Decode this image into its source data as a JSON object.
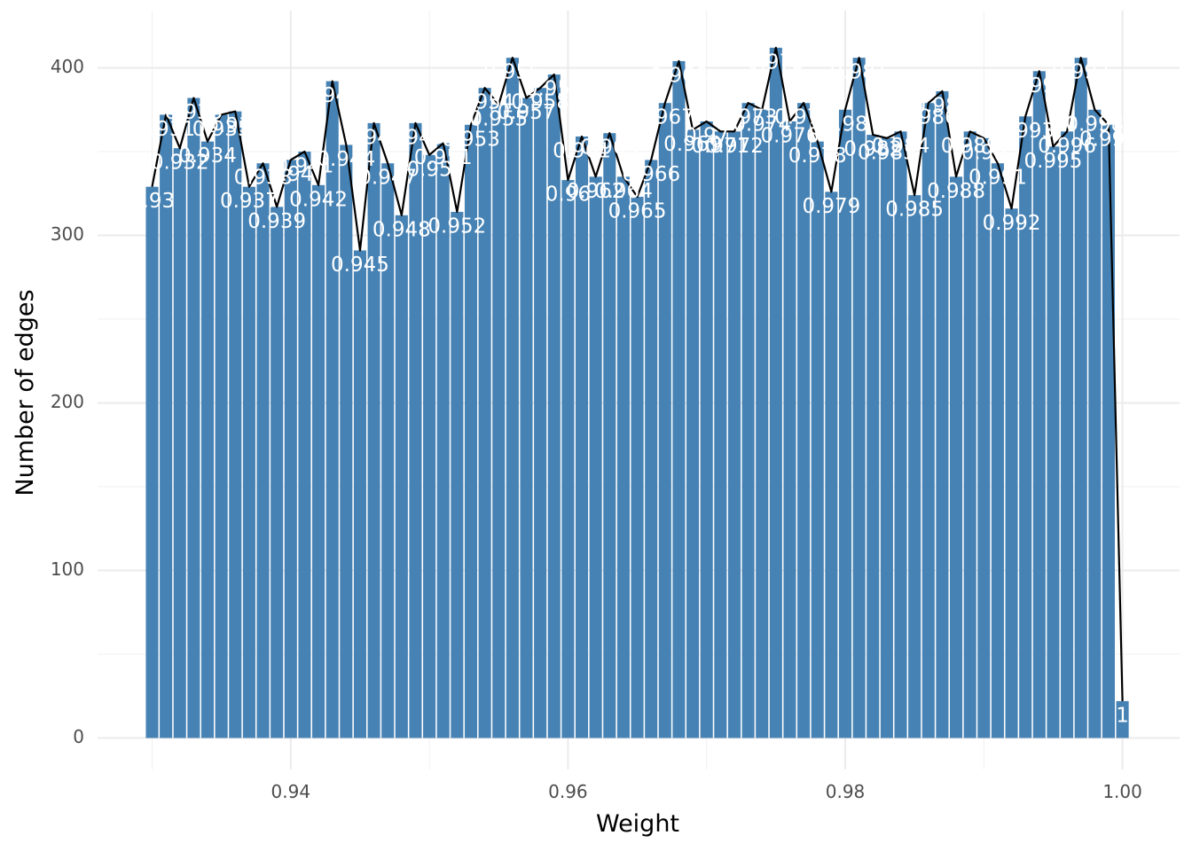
{
  "chart_data": {
    "type": "bar",
    "xlabel": "Weight",
    "ylabel": "Number of edges",
    "xlim": [
      0.9265,
      1.0035
    ],
    "ylim": [
      -20,
      430
    ],
    "x_ticks": [
      0.94,
      0.96,
      0.98,
      1.0
    ],
    "x_tick_labels": [
      "0.94",
      "0.96",
      "0.98",
      "1.00"
    ],
    "y_ticks": [
      0,
      100,
      200,
      300,
      400
    ],
    "y_tick_labels": [
      "0",
      "100",
      "200",
      "300",
      "400"
    ],
    "grid": true,
    "bar_color": "#4682B4",
    "line_color": "#000000",
    "x": [
      0.93,
      0.931,
      0.932,
      0.933,
      0.934,
      0.935,
      0.936,
      0.937,
      0.938,
      0.939,
      0.94,
      0.941,
      0.942,
      0.943,
      0.944,
      0.945,
      0.946,
      0.947,
      0.948,
      0.949,
      0.95,
      0.951,
      0.952,
      0.953,
      0.954,
      0.955,
      0.956,
      0.957,
      0.958,
      0.959,
      0.96,
      0.961,
      0.962,
      0.963,
      0.964,
      0.965,
      0.966,
      0.967,
      0.968,
      0.969,
      0.97,
      0.971,
      0.972,
      0.973,
      0.974,
      0.975,
      0.976,
      0.977,
      0.978,
      0.979,
      0.98,
      0.981,
      0.982,
      0.983,
      0.984,
      0.985,
      0.986,
      0.987,
      0.988,
      0.989,
      0.99,
      0.991,
      0.992,
      0.993,
      0.994,
      0.995,
      0.996,
      0.997,
      0.998,
      0.999,
      1.0
    ],
    "values": [
      329,
      372,
      352,
      382,
      356,
      372,
      374,
      329,
      343,
      317,
      345,
      350,
      330,
      392,
      354,
      291,
      367,
      343,
      312,
      367,
      348,
      355,
      314,
      366,
      388,
      378,
      406,
      382,
      388,
      396,
      333,
      359,
      335,
      361,
      335,
      323,
      345,
      379,
      404,
      363,
      368,
      362,
      362,
      379,
      375,
      412,
      368,
      379,
      356,
      326,
      375,
      406,
      360,
      358,
      362,
      324,
      379,
      386,
      335,
      362,
      358,
      343,
      316,
      371,
      398,
      353,
      362,
      406,
      375,
      366,
      22
    ],
    "data_labels": [
      "0.93",
      "0.931",
      "0.932",
      "0.933",
      "0.934",
      "0.935",
      "0.936",
      "0.937",
      "0.938",
      "0.939",
      "0.94",
      "0.941",
      "0.942",
      "0.943",
      "0.944",
      "0.945",
      "0.946",
      "0.947",
      "0.948",
      "0.949",
      "0.95",
      "0.951",
      "0.952",
      "0.953",
      "0.954",
      "0.955",
      "0.956",
      "0.957",
      "0.958",
      "0.959",
      "0.96",
      "0.961",
      "0.962",
      "0.963",
      "0.964",
      "0.965",
      "0.966",
      "0.967",
      "0.968",
      "0.969",
      "0.97",
      "0.971",
      "0.972",
      "0.973",
      "0.974",
      "0.975",
      "0.976",
      "0.977",
      "0.978",
      "0.979",
      "0.98",
      "0.981",
      "0.982",
      "0.983",
      "0.984",
      "0.985",
      "0.986",
      "0.987",
      "0.988",
      "0.989",
      "0.99",
      "0.991",
      "0.992",
      "0.993",
      "0.994",
      "0.995",
      "0.996",
      "0.997",
      "0.998",
      "0.999",
      "1"
    ]
  }
}
